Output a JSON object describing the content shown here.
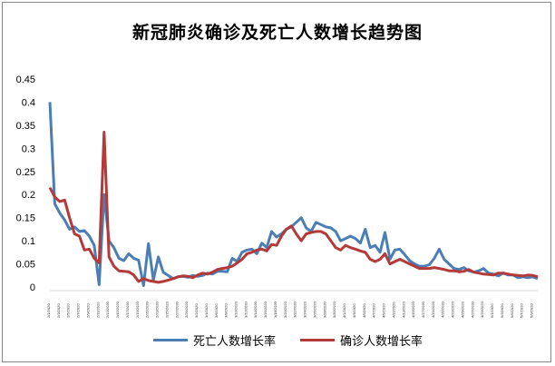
{
  "chart_data": {
    "type": "line",
    "title": "新冠肺炎确诊及死亡人数增长趋势图",
    "xlabel": "",
    "ylabel": "",
    "ylim": [
      0,
      0.45
    ],
    "yticks": [
      "0",
      "0.05",
      "0.1",
      "0.15",
      "0.2",
      "0.25",
      "0.3",
      "0.35",
      "0.4",
      "0.45"
    ],
    "grid": false,
    "legend_position": "bottom",
    "colors": {
      "deaths": "#4a7eb5",
      "confirmed": "#b43a3a"
    },
    "x": [
      "2/1/2020",
      "2/2/2020",
      "2/3/2020",
      "2/4/2020",
      "2/5/2020",
      "2/6/2020",
      "2/7/2020",
      "2/8/2020",
      "2/9/2020",
      "2/10/2020",
      "2/11/2020",
      "2/12/2020",
      "2/13/2020",
      "2/14/2020",
      "2/15/2020",
      "2/16/2020",
      "2/17/2020",
      "2/18/2020",
      "2/19/2020",
      "2/20/2020",
      "2/21/2020",
      "2/22/2020",
      "2/23/2020",
      "2/24/2020",
      "2/25/2020",
      "2/26/2020",
      "2/27/2020",
      "2/28/2020",
      "2/29/2020",
      "3/1/2020",
      "3/2/2020",
      "3/3/2020",
      "3/4/2020",
      "3/5/2020",
      "3/6/2020",
      "3/7/2020",
      "3/8/2020",
      "3/9/2020",
      "3/10/2020",
      "3/11/2020",
      "3/12/2020",
      "3/13/2020",
      "3/14/2020",
      "3/15/2020",
      "3/16/2020",
      "3/17/2020",
      "3/18/2020",
      "3/19/2020",
      "3/20/2020",
      "3/21/2020",
      "3/22/2020",
      "3/23/2020",
      "3/24/2020",
      "3/25/2020",
      "3/26/2020",
      "3/27/2020",
      "3/28/2020",
      "3/29/2020",
      "3/30/2020",
      "3/31/2020",
      "4/1/2020",
      "4/2/2020",
      "4/3/2020",
      "4/4/2020",
      "4/5/2020",
      "4/6/2020",
      "4/7/2020",
      "4/8/2020",
      "4/9/2020",
      "4/10/2020",
      "4/11/2020",
      "4/12/2020",
      "4/13/2020",
      "4/14/2020",
      "4/15/2020",
      "4/16/2020",
      "4/17/2020",
      "4/18/2020",
      "4/19/2020",
      "4/20/2020",
      "4/21/2020",
      "4/22/2020",
      "4/23/2020",
      "4/24/2020",
      "4/25/2020",
      "4/26/2020",
      "4/27/2020",
      "4/28/2020",
      "4/29/2020",
      "4/30/2020",
      "5/1/2020",
      "5/2/2020",
      "5/3/2020",
      "5/4/2020",
      "5/5/2020",
      "5/6/2020",
      "5/7/2020",
      "5/8/2020",
      "5/9/2020",
      "5/10/2020"
    ],
    "x_tick_labels": [
      "2/1/2020",
      "2/3/2020",
      "2/5/2020",
      "2/7/2020",
      "2/9/2020",
      "2/11/2020",
      "2/13/2020",
      "2/15/2020",
      "2/17/2020",
      "2/19/2020",
      "2/21/2020",
      "2/23/2020",
      "2/25/2020",
      "2/27/2020",
      "2/29/2020",
      "3/2/2020",
      "3/4/2020",
      "3/6/2020",
      "3/8/2020",
      "3/10/2020",
      "3/12/2020",
      "3/14/2020",
      "3/16/2020",
      "3/18/2020",
      "3/20/2020",
      "3/22/2020",
      "3/24/2020",
      "3/26/2020",
      "3/28/2020",
      "3/30/2020",
      "4/1/2020",
      "4/3/2020",
      "4/5/2020",
      "4/7/2020",
      "4/9/2020",
      "4/11/2020",
      "4/13/2020",
      "4/15/2020",
      "4/17/2020",
      "4/19/2020",
      "4/21/2020",
      "4/23/2020",
      "4/25/2020",
      "4/27/2020",
      "4/29/2020",
      "5/1/2020",
      "5/3/2020",
      "5/5/2020",
      "5/7/2020",
      "5/9/2020"
    ],
    "series": [
      {
        "name": "死亡人数增长率",
        "values": [
          0.4,
          0.18,
          0.16,
          0.145,
          0.125,
          0.13,
          0.12,
          0.122,
          0.11,
          0.09,
          0.005,
          0.2,
          0.1,
          0.085,
          0.062,
          0.057,
          0.072,
          0.062,
          0.058,
          0.003,
          0.094,
          0.015,
          0.065,
          0.032,
          0.025,
          0.018,
          0.022,
          0.023,
          0.021,
          0.025,
          0.023,
          0.025,
          0.03,
          0.028,
          0.034,
          0.034,
          0.033,
          0.062,
          0.055,
          0.075,
          0.08,
          0.082,
          0.072,
          0.095,
          0.085,
          0.12,
          0.108,
          0.115,
          0.125,
          0.13,
          0.14,
          0.15,
          0.128,
          0.12,
          0.14,
          0.135,
          0.13,
          0.128,
          0.12,
          0.1,
          0.105,
          0.11,
          0.105,
          0.095,
          0.125,
          0.085,
          0.09,
          0.075,
          0.118,
          0.06,
          0.08,
          0.082,
          0.07,
          0.057,
          0.05,
          0.045,
          0.045,
          0.048,
          0.062,
          0.082,
          0.06,
          0.05,
          0.04,
          0.038,
          0.042,
          0.035,
          0.032,
          0.035,
          0.04,
          0.03,
          0.028,
          0.024,
          0.03,
          0.026,
          0.026,
          0.02,
          0.022,
          0.02,
          0.022,
          0.018
        ]
      },
      {
        "name": "确诊人数增长率",
        "values": [
          0.215,
          0.195,
          0.185,
          0.188,
          0.15,
          0.115,
          0.11,
          0.08,
          0.082,
          0.062,
          0.052,
          0.335,
          0.065,
          0.045,
          0.035,
          0.034,
          0.033,
          0.026,
          0.012,
          0.018,
          0.014,
          0.012,
          0.01,
          0.012,
          0.015,
          0.018,
          0.022,
          0.024,
          0.023,
          0.02,
          0.026,
          0.03,
          0.028,
          0.032,
          0.038,
          0.04,
          0.042,
          0.045,
          0.052,
          0.06,
          0.072,
          0.075,
          0.08,
          0.082,
          0.078,
          0.092,
          0.09,
          0.11,
          0.125,
          0.132,
          0.115,
          0.1,
          0.115,
          0.118,
          0.12,
          0.12,
          0.115,
          0.1,
          0.085,
          0.08,
          0.09,
          0.085,
          0.082,
          0.078,
          0.075,
          0.06,
          0.055,
          0.06,
          0.072,
          0.05,
          0.055,
          0.06,
          0.055,
          0.05,
          0.045,
          0.04,
          0.04,
          0.04,
          0.042,
          0.04,
          0.038,
          0.035,
          0.035,
          0.033,
          0.034,
          0.038,
          0.032,
          0.03,
          0.028,
          0.027,
          0.026,
          0.03,
          0.03,
          0.028,
          0.026,
          0.025,
          0.024,
          0.026,
          0.025,
          0.022
        ]
      }
    ]
  }
}
